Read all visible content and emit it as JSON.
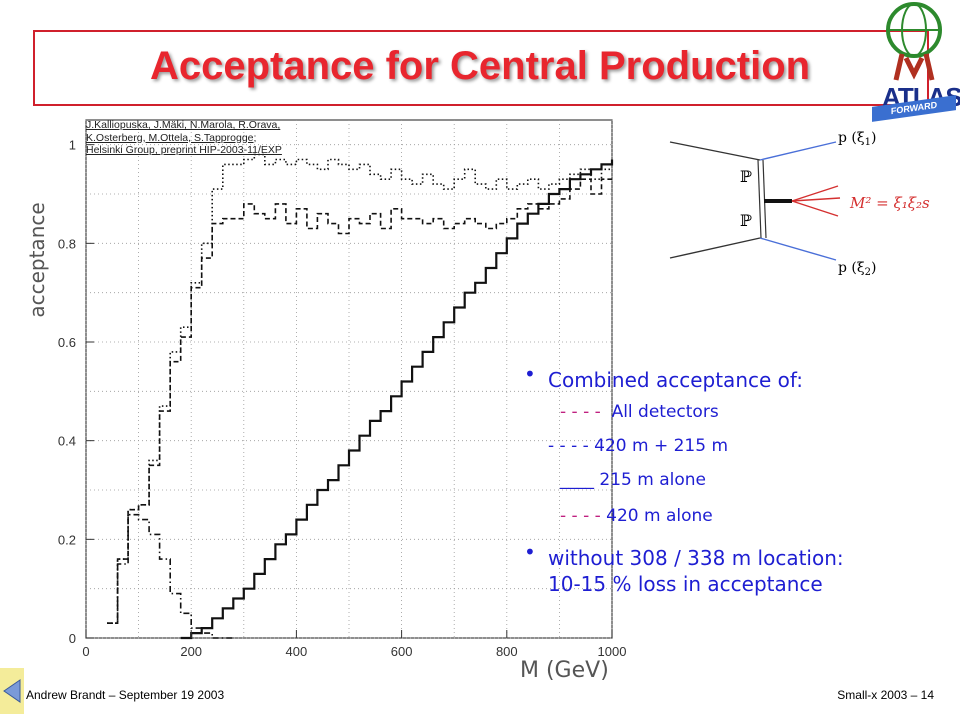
{
  "slide": {
    "title": "Acceptance for Central Production",
    "reference_lines": [
      "J.Kalliopuska, J.Mäki, N.Marola, R.Orava,",
      "K.Osterberg, M.Ottela, S.Tapprogge;",
      "Helsinki Group, preprint HIP-2003-11/EXP"
    ],
    "bullet1": "Combined acceptance of:",
    "legend_items": [
      {
        "marker": "- - - -",
        "label": "All detectors"
      },
      {
        "marker": "- - - -",
        "label": "420 m + 215 m"
      },
      {
        "marker": "____",
        "label": "215 m alone"
      },
      {
        "marker": "- - - -",
        "label": "420 m alone"
      }
    ],
    "bullet2_line1": "without 308 / 338 m location:",
    "bullet2_line2": "10-15 % loss in acceptance",
    "footer_left": "Andrew Brandt – September 19 2003",
    "footer_right": "Small-x 2003 – 14",
    "logo_text": "ATLAS",
    "logo_subtext": "FORWARD PHYSICS"
  },
  "diagram": {
    "proton1": "p (ξ",
    "proton1_sub": "1",
    "proton2": "p (ξ",
    "proton2_sub": "2",
    "pomeron": "ℙ",
    "mass_formula": "M² = ξ₁ξ₂s"
  },
  "chart_data": {
    "type": "line",
    "xlabel": "M (GeV)",
    "ylabel": "acceptance",
    "xlim": [
      0,
      1000
    ],
    "ylim": [
      0,
      1.05
    ],
    "x_ticks": [
      0,
      200,
      400,
      600,
      800,
      1000
    ],
    "y_ticks": [
      "0",
      "0.2",
      "0.4",
      "0.6",
      "0.8",
      "1"
    ],
    "grid": true,
    "bin_width": 20,
    "series": [
      {
        "name": "All detectors",
        "style": "dotted",
        "x_start": 40,
        "values": [
          0.03,
          0.16,
          0.26,
          0.27,
          0.36,
          0.47,
          0.58,
          0.63,
          0.72,
          0.8,
          0.91,
          0.96,
          0.96,
          0.97,
          0.98,
          0.96,
          0.97,
          0.96,
          0.97,
          0.96,
          0.95,
          0.97,
          0.96,
          0.95,
          0.96,
          0.94,
          0.93,
          0.95,
          0.93,
          0.92,
          0.94,
          0.92,
          0.91,
          0.93,
          0.95,
          0.92,
          0.91,
          0.93,
          0.91,
          0.92,
          0.93,
          0.91,
          0.92,
          0.93,
          0.94,
          0.95,
          0.93,
          0.95
        ]
      },
      {
        "name": "420 m + 215 m",
        "style": "dashed",
        "x_start": 40,
        "values": [
          0.03,
          0.16,
          0.26,
          0.27,
          0.35,
          0.46,
          0.56,
          0.61,
          0.71,
          0.77,
          0.84,
          0.85,
          0.85,
          0.88,
          0.86,
          0.85,
          0.88,
          0.84,
          0.87,
          0.83,
          0.86,
          0.84,
          0.82,
          0.85,
          0.84,
          0.86,
          0.83,
          0.87,
          0.85,
          0.85,
          0.84,
          0.85,
          0.83,
          0.84,
          0.85,
          0.84,
          0.83,
          0.84,
          0.85,
          0.87,
          0.88,
          0.87,
          0.88,
          0.89,
          0.91,
          0.93,
          0.9,
          0.93
        ]
      },
      {
        "name": "215 m alone",
        "style": "solid",
        "x_start": 180,
        "values": [
          0.0,
          0.01,
          0.02,
          0.04,
          0.06,
          0.08,
          0.1,
          0.13,
          0.16,
          0.19,
          0.21,
          0.24,
          0.27,
          0.3,
          0.32,
          0.35,
          0.38,
          0.41,
          0.44,
          0.46,
          0.49,
          0.52,
          0.55,
          0.58,
          0.61,
          0.64,
          0.67,
          0.7,
          0.72,
          0.75,
          0.78,
          0.81,
          0.84,
          0.86,
          0.88,
          0.9,
          0.91,
          0.93,
          0.94,
          0.95,
          0.96,
          0.97
        ]
      },
      {
        "name": "420 m alone",
        "style": "dash-dot",
        "x_start": 40,
        "values": [
          0.03,
          0.15,
          0.25,
          0.24,
          0.21,
          0.16,
          0.09,
          0.05,
          0.02,
          0.01,
          0.0,
          0.0
        ]
      }
    ]
  }
}
